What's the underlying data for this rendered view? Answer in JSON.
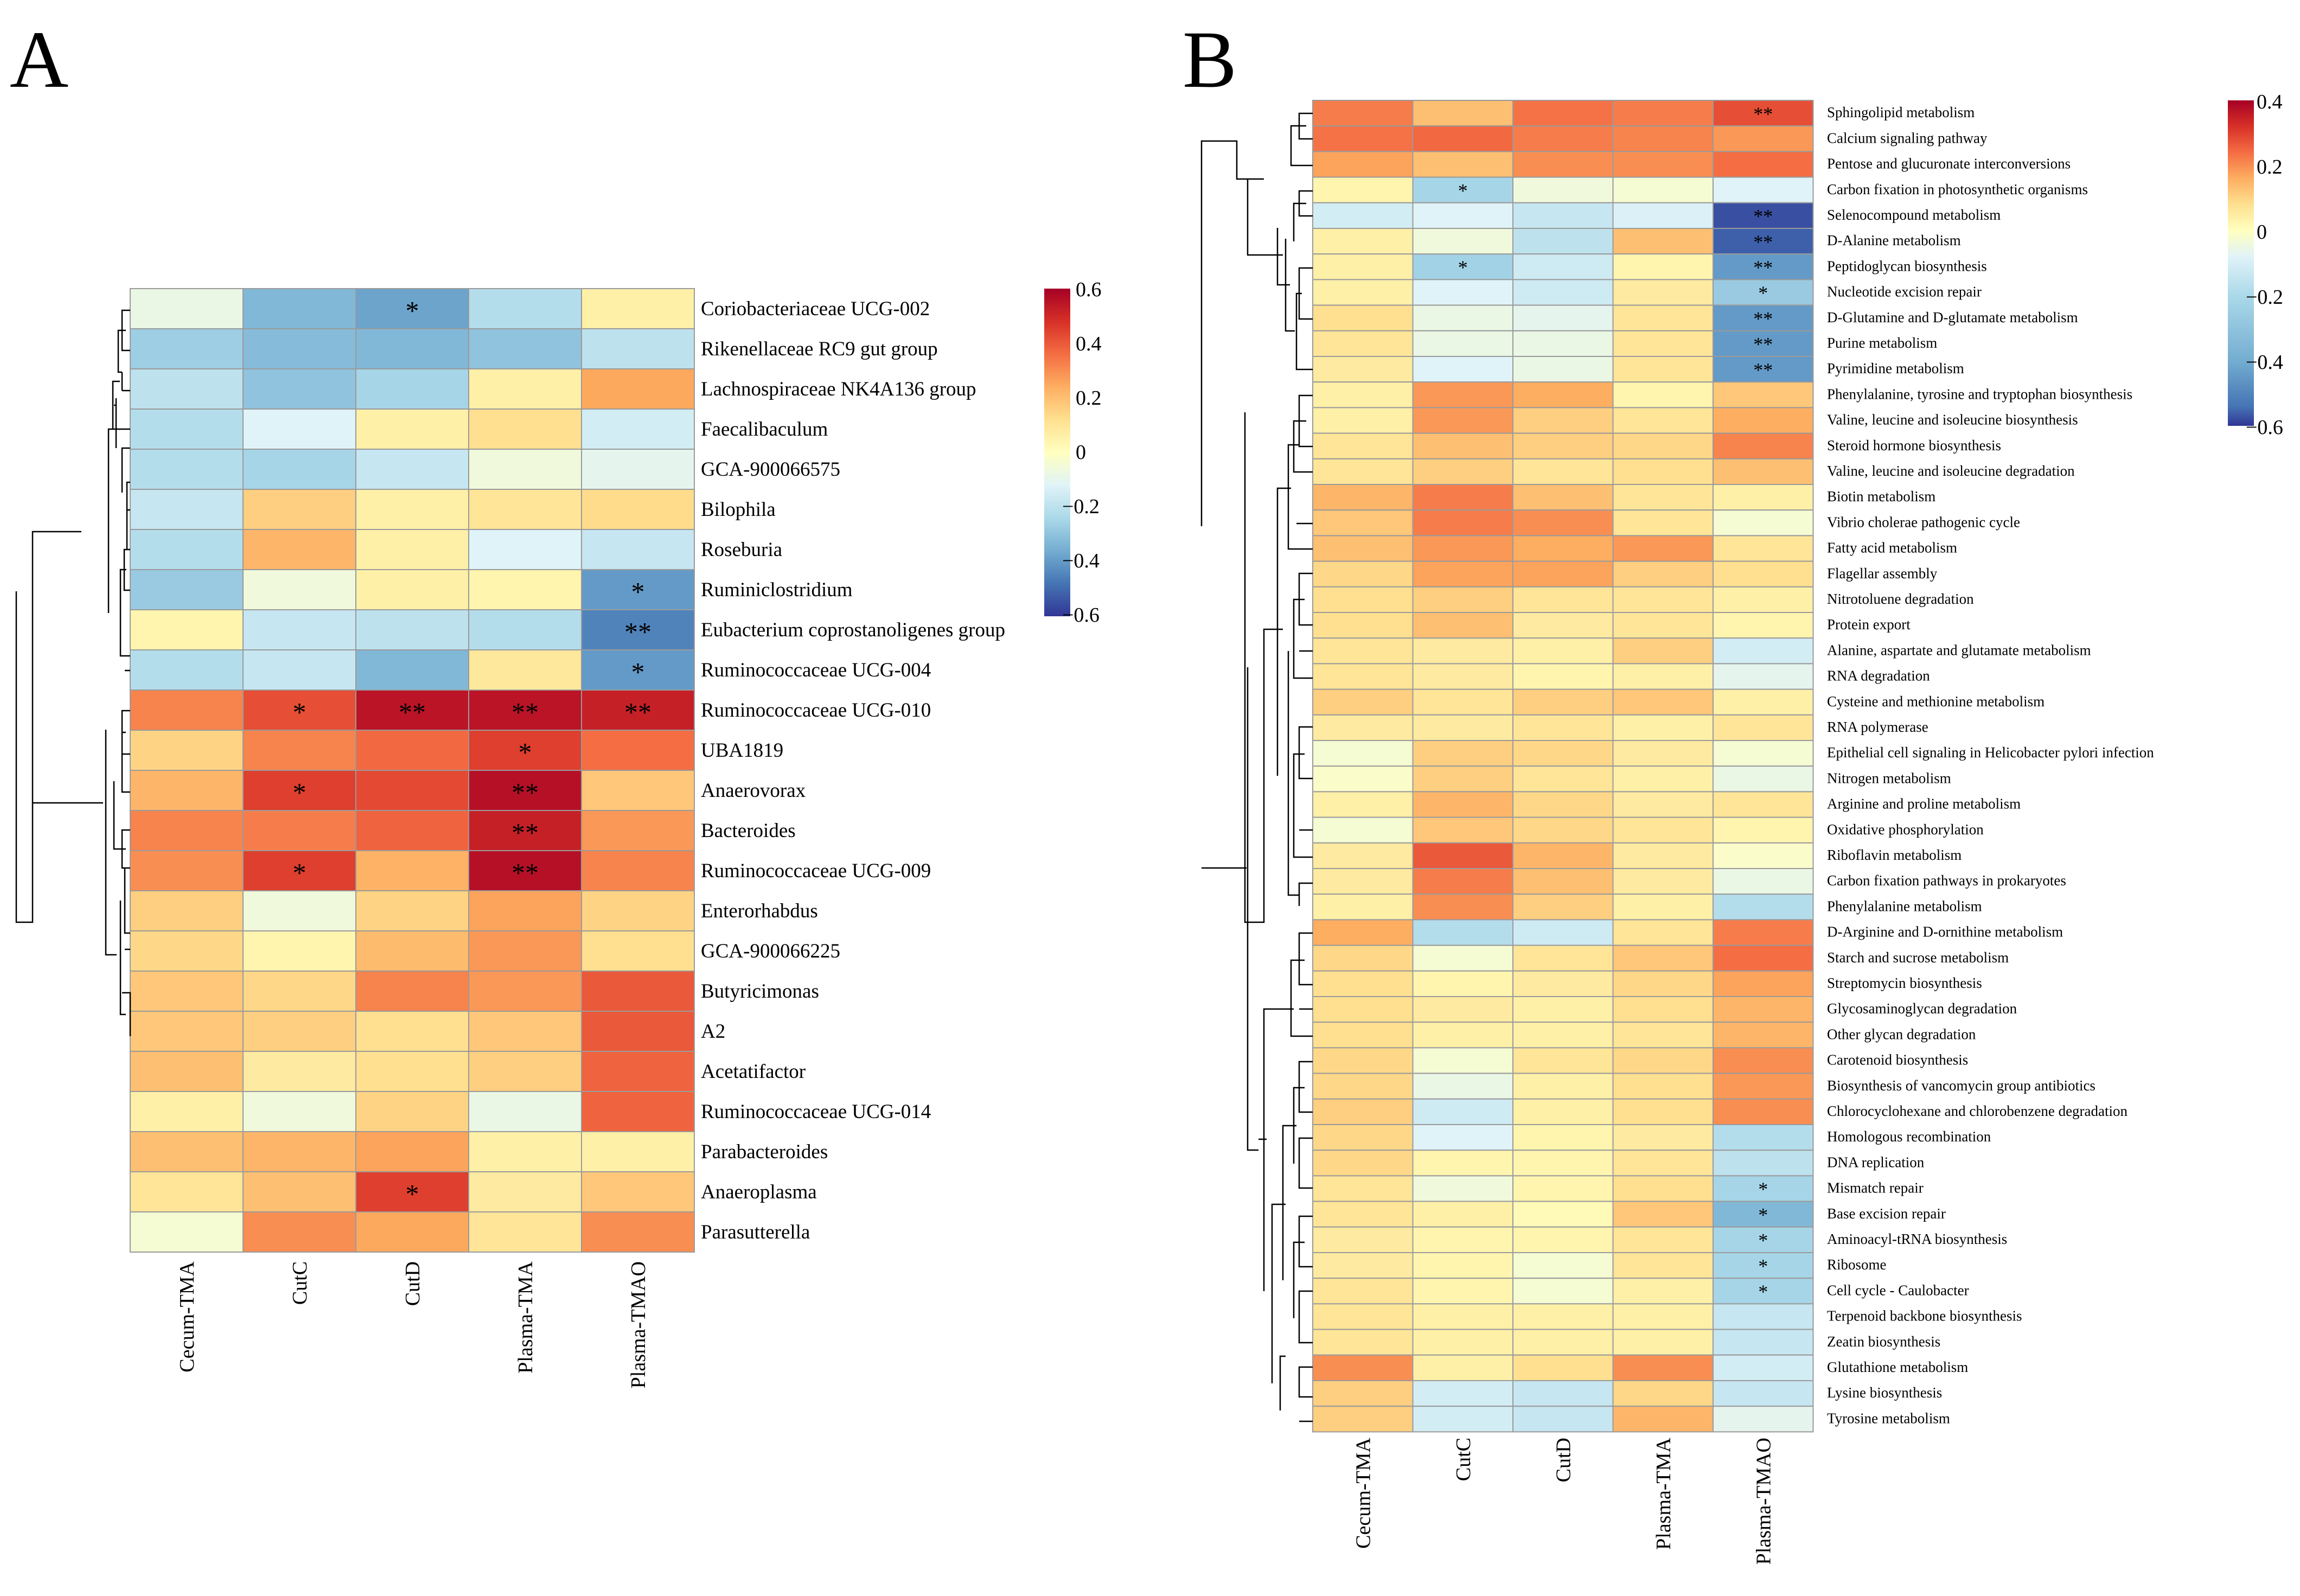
{
  "chart_data": [
    {
      "type": "heatmap",
      "panel": "A",
      "columns": [
        "Cecum-TMA",
        "CutC",
        "CutD",
        "Plasma-TMA",
        "Plasma-TMAO"
      ],
      "rows": [
        "Coriobacteriaceae UCG-002",
        "Rikenellaceae RC9 gut group",
        "Lachnospiraceae NK4A136 group",
        "Faecalibaculum",
        "GCA-900066575",
        "Bilophila",
        "Roseburia",
        "Ruminiclostridium",
        "Eubacterium coprostanoligenes group",
        "Ruminococcaceae UCG-004",
        "Ruminococcaceae UCG-010",
        "UBA1819",
        "Anaerovorax",
        "Bacteroides",
        "Ruminococcaceae UCG-009",
        "Enterorhabdus",
        "GCA-900066225",
        "Butyricimonas",
        "A2",
        "Acetatifactor",
        "Ruminococcaceae UCG-014",
        "Parabacteroides",
        "Anaeroplasma",
        "Parasutterella"
      ],
      "values": [
        [
          -0.08,
          -0.33,
          -0.38,
          -0.22,
          0.06
        ],
        [
          -0.27,
          -0.32,
          -0.33,
          -0.3,
          -0.2
        ],
        [
          -0.2,
          -0.3,
          -0.25,
          0.06,
          0.25
        ],
        [
          -0.22,
          -0.12,
          0.06,
          0.12,
          -0.15
        ],
        [
          -0.22,
          -0.25,
          -0.18,
          -0.06,
          -0.1
        ],
        [
          -0.18,
          0.16,
          0.06,
          0.1,
          0.13
        ],
        [
          -0.22,
          0.22,
          0.06,
          -0.12,
          -0.18
        ],
        [
          -0.28,
          -0.06,
          0.06,
          0.04,
          -0.4
        ],
        [
          0.04,
          -0.18,
          -0.2,
          -0.22,
          -0.45
        ],
        [
          -0.22,
          -0.18,
          -0.33,
          0.09,
          -0.4
        ],
        [
          0.32,
          0.42,
          0.55,
          0.55,
          0.52
        ],
        [
          0.15,
          0.32,
          0.37,
          0.45,
          0.36
        ],
        [
          0.22,
          0.45,
          0.43,
          0.56,
          0.18
        ],
        [
          0.32,
          0.33,
          0.38,
          0.52,
          0.28
        ],
        [
          0.3,
          0.45,
          0.23,
          0.56,
          0.32
        ],
        [
          0.16,
          -0.06,
          0.15,
          0.26,
          0.15
        ],
        [
          0.14,
          0.04,
          0.21,
          0.28,
          0.12
        ],
        [
          0.18,
          0.14,
          0.32,
          0.28,
          0.4
        ],
        [
          0.18,
          0.16,
          0.12,
          0.18,
          0.4
        ],
        [
          0.2,
          0.08,
          0.12,
          0.16,
          0.38
        ],
        [
          0.06,
          -0.06,
          0.15,
          -0.08,
          0.38
        ],
        [
          0.2,
          0.22,
          0.26,
          0.06,
          0.06
        ],
        [
          0.1,
          0.2,
          0.45,
          0.08,
          0.18
        ],
        [
          -0.04,
          0.3,
          0.25,
          0.1,
          0.3
        ]
      ],
      "significance": [
        [
          "",
          "",
          "*",
          "",
          ""
        ],
        [
          "",
          "",
          "",
          "",
          ""
        ],
        [
          "",
          "",
          "",
          "",
          ""
        ],
        [
          "",
          "",
          "",
          "",
          ""
        ],
        [
          "",
          "",
          "",
          "",
          ""
        ],
        [
          "",
          "",
          "",
          "",
          ""
        ],
        [
          "",
          "",
          "",
          "",
          ""
        ],
        [
          "",
          "",
          "",
          "",
          "*"
        ],
        [
          "",
          "",
          "",
          "",
          "**"
        ],
        [
          "",
          "",
          "",
          "",
          "*"
        ],
        [
          "",
          "*",
          "**",
          "**",
          "**"
        ],
        [
          "",
          "",
          "",
          "*",
          ""
        ],
        [
          "",
          "*",
          "",
          "**",
          ""
        ],
        [
          "",
          "",
          "",
          "**",
          ""
        ],
        [
          "",
          "*",
          "",
          "**",
          ""
        ],
        [
          "",
          "",
          "",
          "",
          ""
        ],
        [
          "",
          "",
          "",
          "",
          ""
        ],
        [
          "",
          "",
          "",
          "",
          ""
        ],
        [
          "",
          "",
          "",
          "",
          ""
        ],
        [
          "",
          "",
          "",
          "",
          ""
        ],
        [
          "",
          "",
          "",
          "",
          ""
        ],
        [
          "",
          "",
          "",
          "",
          ""
        ],
        [
          "",
          "",
          "*",
          "",
          ""
        ],
        [
          "",
          "",
          "",
          "",
          ""
        ]
      ],
      "colorbar": {
        "min": -0.6,
        "max": 0.6,
        "ticks": [
          "0.6",
          "0.4",
          "0.2",
          "0",
          "−0.2",
          "−0.4",
          "−0.6"
        ]
      }
    },
    {
      "type": "heatmap",
      "panel": "B",
      "columns": [
        "Cecum-TMA",
        "CutC",
        "CutD",
        "Plasma-TMA",
        "Plasma-TMAO"
      ],
      "rows": [
        "Sphingolipid metabolism",
        "Calcium signaling pathway",
        "Pentose and glucuronate interconversions",
        "Carbon fixation in photosynthetic organisms",
        "Selenocompound metabolism",
        "D-Alanine metabolism",
        "Peptidoglycan biosynthesis",
        "Nucleotide excision repair",
        "D-Glutamine and D-glutamate metabolism",
        "Purine metabolism",
        "Pyrimidine metabolism",
        "Phenylalanine, tyrosine and tryptophan biosynthesis",
        "Valine, leucine and isoleucine biosynthesis",
        "Steroid hormone biosynthesis",
        "Valine, leucine and isoleucine degradation",
        "Biotin metabolism",
        "Vibrio cholerae pathogenic cycle",
        "Fatty acid metabolism",
        "Flagellar assembly",
        "Nitrotoluene degradation",
        "Protein export",
        "Alanine, aspartate and glutamate metabolism",
        "RNA degradation",
        "Cysteine and methionine metabolism",
        "RNA polymerase",
        "Epithelial cell signaling in Helicobacter pylori infection",
        "Nitrogen metabolism",
        "Arginine and proline metabolism",
        "Oxidative phosphorylation",
        "Riboflavin metabolism",
        "Carbon fixation pathways in prokaryotes",
        "Phenylalanine metabolism",
        "D-Arginine and D-ornithine metabolism",
        "Starch and sucrose metabolism",
        "Streptomycin biosynthesis",
        "Glycosaminoglycan degradation",
        "Other glycan degradation",
        "Carotenoid biosynthesis",
        "Biosynthesis of vancomycin group antibiotics",
        "Chlorocyclohexane and chlorobenzene degradation",
        "Homologous recombination",
        "DNA replication",
        "Mismatch repair",
        "Base excision repair",
        "Aminoacyl-tRNA biosynthesis",
        "Ribosome",
        "Cell cycle - Caulobacter",
        "Terpenoid backbone biosynthesis",
        "Zeatin biosynthesis",
        "Glutathione metabolism",
        "Lysine biosynthesis",
        "Tyrosine metabolism"
      ],
      "values": [
        [
          0.33,
          0.2,
          0.35,
          0.33,
          0.42
        ],
        [
          0.35,
          0.37,
          0.33,
          0.32,
          0.28
        ],
        [
          0.26,
          0.2,
          0.3,
          0.3,
          0.36
        ],
        [
          0.04,
          -0.25,
          -0.06,
          -0.04,
          -0.12
        ],
        [
          -0.15,
          -0.12,
          -0.18,
          -0.13,
          -0.55
        ],
        [
          0.06,
          -0.06,
          -0.2,
          0.2,
          -0.52
        ],
        [
          0.06,
          -0.26,
          -0.16,
          0.04,
          -0.4
        ],
        [
          0.06,
          -0.12,
          -0.16,
          0.08,
          -0.28
        ],
        [
          0.12,
          -0.08,
          -0.1,
          0.1,
          -0.4
        ],
        [
          0.1,
          -0.08,
          -0.08,
          0.1,
          -0.4
        ],
        [
          0.08,
          -0.12,
          -0.08,
          0.1,
          -0.4
        ],
        [
          0.06,
          0.28,
          0.24,
          0.04,
          0.18
        ],
        [
          0.06,
          0.28,
          0.16,
          0.1,
          0.24
        ],
        [
          0.1,
          0.2,
          0.16,
          0.14,
          0.32
        ],
        [
          0.1,
          0.16,
          0.1,
          0.12,
          0.2
        ],
        [
          0.22,
          0.33,
          0.2,
          0.1,
          0.06
        ],
        [
          0.18,
          0.33,
          0.3,
          0.1,
          -0.04
        ],
        [
          0.2,
          0.28,
          0.24,
          0.28,
          0.1
        ],
        [
          0.14,
          0.26,
          0.26,
          0.16,
          0.12
        ],
        [
          0.12,
          0.16,
          0.1,
          0.1,
          0.06
        ],
        [
          0.12,
          0.2,
          0.08,
          0.1,
          0.04
        ],
        [
          0.1,
          0.08,
          0.06,
          0.16,
          -0.15
        ],
        [
          0.1,
          0.08,
          0.04,
          0.06,
          -0.1
        ],
        [
          0.16,
          0.1,
          0.16,
          0.18,
          0.06
        ],
        [
          0.08,
          0.08,
          0.1,
          0.06,
          0.1
        ],
        [
          -0.04,
          0.16,
          0.14,
          0.08,
          -0.04
        ],
        [
          -0.02,
          0.16,
          0.1,
          0.06,
          -0.08
        ],
        [
          0.06,
          0.22,
          0.14,
          0.08,
          0.1
        ],
        [
          -0.04,
          0.18,
          0.14,
          0.1,
          0.04
        ],
        [
          0.08,
          0.4,
          0.22,
          0.08,
          -0.02
        ],
        [
          0.08,
          0.33,
          0.2,
          0.08,
          -0.08
        ],
        [
          0.06,
          0.3,
          0.16,
          0.06,
          -0.22
        ],
        [
          0.24,
          -0.22,
          -0.16,
          0.1,
          0.33
        ],
        [
          0.14,
          -0.04,
          0.1,
          0.18,
          0.36
        ],
        [
          0.12,
          0.04,
          0.08,
          0.14,
          0.26
        ],
        [
          0.12,
          0.08,
          0.06,
          0.12,
          0.22
        ],
        [
          0.12,
          0.06,
          0.06,
          0.1,
          0.22
        ],
        [
          0.14,
          -0.04,
          0.1,
          0.14,
          0.3
        ],
        [
          0.14,
          -0.08,
          0.06,
          0.12,
          0.28
        ],
        [
          0.16,
          -0.16,
          0.06,
          0.12,
          0.3
        ],
        [
          0.14,
          -0.12,
          0.04,
          0.08,
          -0.22
        ],
        [
          0.14,
          0.04,
          0.04,
          0.1,
          -0.2
        ],
        [
          0.1,
          -0.06,
          0.04,
          0.12,
          -0.25
        ],
        [
          0.1,
          0.06,
          0.02,
          0.18,
          -0.33
        ],
        [
          0.08,
          0.04,
          0.04,
          0.1,
          -0.25
        ],
        [
          0.08,
          0.04,
          -0.04,
          0.1,
          -0.25
        ],
        [
          0.1,
          0.04,
          -0.04,
          0.06,
          -0.25
        ],
        [
          0.1,
          0.06,
          0.06,
          0.06,
          -0.18
        ],
        [
          0.1,
          0.06,
          0.06,
          0.06,
          -0.18
        ],
        [
          0.3,
          0.06,
          0.12,
          0.3,
          -0.15
        ],
        [
          0.16,
          -0.15,
          -0.18,
          0.14,
          -0.18
        ],
        [
          0.16,
          -0.15,
          -0.18,
          0.22,
          -0.1
        ]
      ],
      "significance": [
        [
          "",
          "",
          "",
          "",
          "**"
        ],
        [
          "",
          "",
          "",
          "",
          ""
        ],
        [
          "",
          "",
          "",
          "",
          ""
        ],
        [
          "",
          "*",
          "",
          "",
          ""
        ],
        [
          "",
          "",
          "",
          "",
          "**"
        ],
        [
          "",
          "",
          "",
          "",
          "**"
        ],
        [
          "",
          "*",
          "",
          "",
          "**"
        ],
        [
          "",
          "",
          "",
          "",
          "*"
        ],
        [
          "",
          "",
          "",
          "",
          "**"
        ],
        [
          "",
          "",
          "",
          "",
          "**"
        ],
        [
          "",
          "",
          "",
          "",
          "**"
        ],
        [
          "",
          "",
          "",
          "",
          ""
        ],
        [
          "",
          "",
          "",
          "",
          ""
        ],
        [
          "",
          "",
          "",
          "",
          ""
        ],
        [
          "",
          "",
          "",
          "",
          ""
        ],
        [
          "",
          "",
          "",
          "",
          ""
        ],
        [
          "",
          "",
          "",
          "",
          ""
        ],
        [
          "",
          "",
          "",
          "",
          ""
        ],
        [
          "",
          "",
          "",
          "",
          ""
        ],
        [
          "",
          "",
          "",
          "",
          ""
        ],
        [
          "",
          "",
          "",
          "",
          ""
        ],
        [
          "",
          "",
          "",
          "",
          ""
        ],
        [
          "",
          "",
          "",
          "",
          ""
        ],
        [
          "",
          "",
          "",
          "",
          ""
        ],
        [
          "",
          "",
          "",
          "",
          ""
        ],
        [
          "",
          "",
          "",
          "",
          ""
        ],
        [
          "",
          "",
          "",
          "",
          ""
        ],
        [
          "",
          "",
          "",
          "",
          ""
        ],
        [
          "",
          "",
          "",
          "",
          ""
        ],
        [
          "",
          "",
          "",
          "",
          ""
        ],
        [
          "",
          "",
          "",
          "",
          ""
        ],
        [
          "",
          "",
          "",
          "",
          ""
        ],
        [
          "",
          "",
          "",
          "",
          ""
        ],
        [
          "",
          "",
          "",
          "",
          ""
        ],
        [
          "",
          "",
          "",
          "",
          ""
        ],
        [
          "",
          "",
          "",
          "",
          ""
        ],
        [
          "",
          "",
          "",
          "",
          ""
        ],
        [
          "",
          "",
          "",
          "",
          ""
        ],
        [
          "",
          "",
          "",
          "",
          ""
        ],
        [
          "",
          "",
          "",
          "",
          ""
        ],
        [
          "",
          "",
          "",
          "",
          ""
        ],
        [
          "",
          "",
          "",
          "",
          ""
        ],
        [
          "",
          "",
          "",
          "",
          "*"
        ],
        [
          "",
          "",
          "",
          "",
          "*"
        ],
        [
          "",
          "",
          "",
          "",
          "*"
        ],
        [
          "",
          "",
          "",
          "",
          "*"
        ],
        [
          "",
          "",
          "",
          "",
          "*"
        ],
        [
          "",
          "",
          "",
          "",
          ""
        ],
        [
          "",
          "",
          "",
          "",
          ""
        ],
        [
          "",
          "",
          "",
          "",
          ""
        ],
        [
          "",
          "",
          "",
          "",
          ""
        ],
        [
          "",
          "",
          "",
          "",
          ""
        ]
      ],
      "colorbar": {
        "min": -0.6,
        "max": 0.4,
        "ticks": [
          "0.4",
          "0.2",
          "0",
          "−0.2",
          "−0.4",
          "−0.6"
        ]
      }
    }
  ],
  "colors": {
    "scale": [
      "#313695",
      "#4575b4",
      "#74add1",
      "#abd9e9",
      "#e0f3f8",
      "#ffffbf",
      "#fee090",
      "#fdae61",
      "#f46d43",
      "#d73027",
      "#a50026"
    ],
    "grid": "#9a9a9a",
    "dendrogram": "#000000"
  }
}
